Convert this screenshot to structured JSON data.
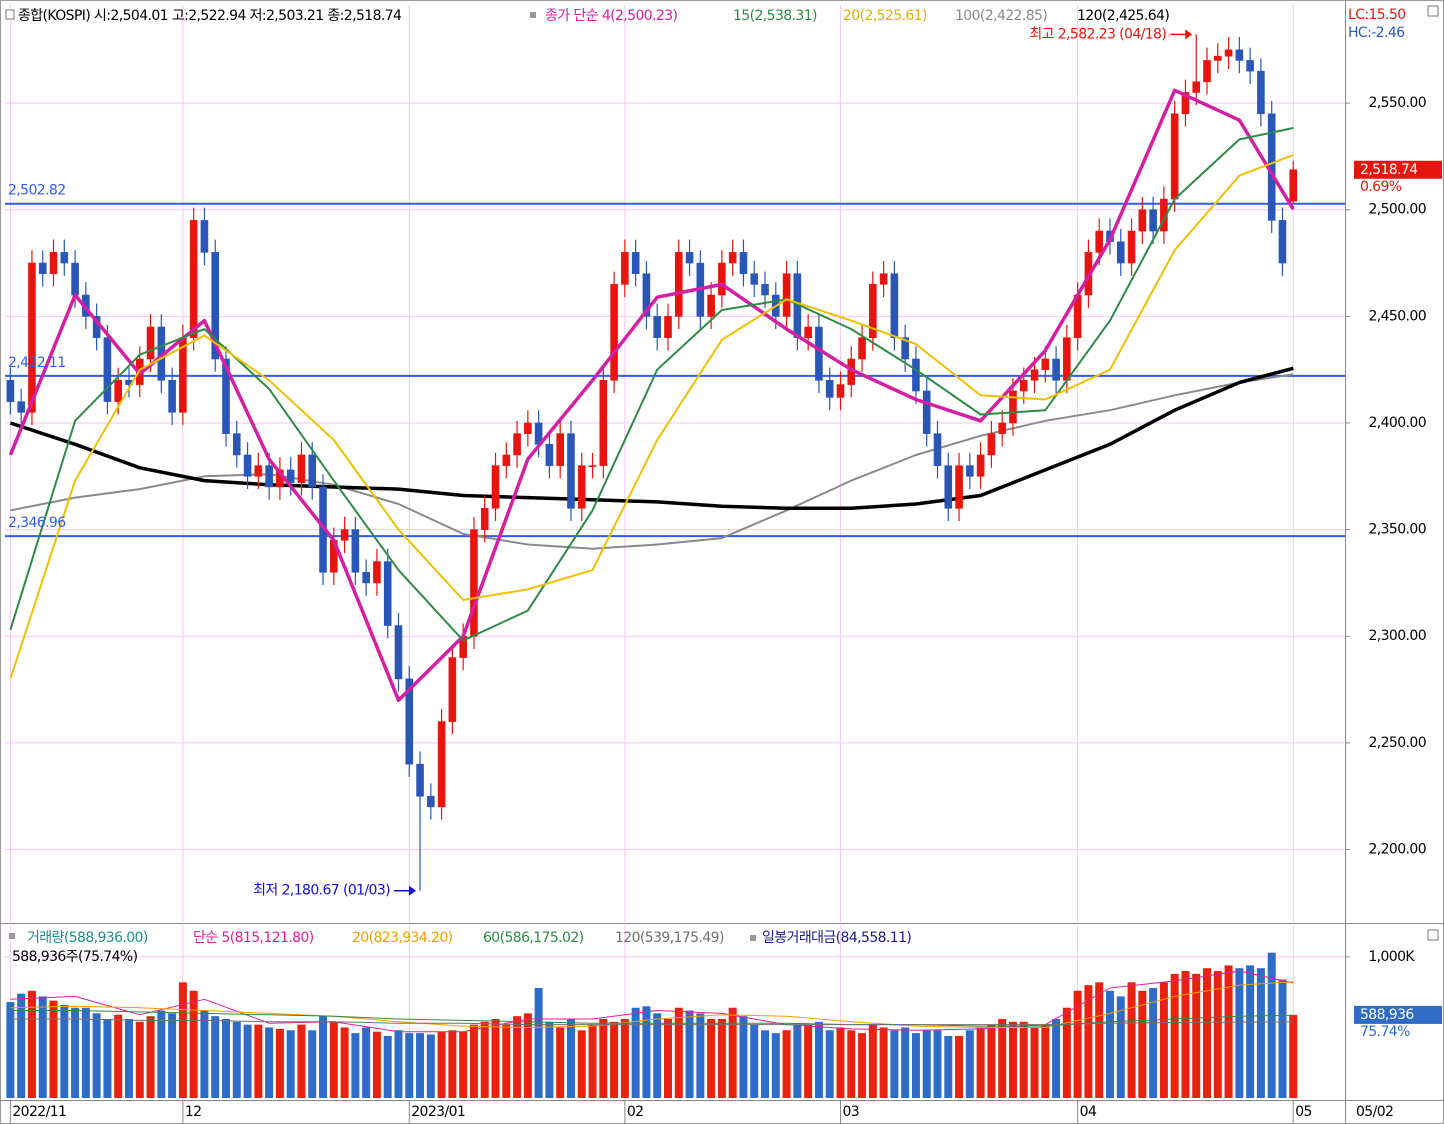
{
  "chart_data": [
    {
      "type": "candlestick",
      "title": "종합(KOSPI) 시:2,504.01 고:2,522.94 저:2,503.21 종:2,518.74",
      "open": [
        2420,
        2410,
        2405,
        2475,
        2470,
        2480,
        2475,
        2460,
        2450,
        2440,
        2410,
        2420,
        2418,
        2430,
        2445,
        2420,
        2405,
        2440,
        2495,
        2480,
        2430,
        2395,
        2385,
        2375,
        2380,
        2370,
        2378,
        2372,
        2385,
        2370,
        2330,
        2345,
        2350,
        2330,
        2325,
        2335,
        2305,
        2280,
        2240,
        2225,
        2220,
        2260,
        2290,
        2300,
        2350,
        2360,
        2380,
        2385,
        2395,
        2400,
        2390,
        2380,
        2395,
        2360,
        2380,
        2380,
        2420,
        2465,
        2480,
        2470,
        2450,
        2440,
        2450,
        2480,
        2475,
        2450,
        2460,
        2475,
        2480,
        2470,
        2465,
        2460,
        2450,
        2470,
        2440,
        2445,
        2420,
        2412,
        2418,
        2430,
        2440,
        2465,
        2470,
        2440,
        2430,
        2415,
        2395,
        2380,
        2360,
        2380,
        2375,
        2385,
        2395,
        2400,
        2415,
        2420,
        2425,
        2430,
        2420,
        2440,
        2460,
        2480,
        2490,
        2485,
        2475,
        2490,
        2500,
        2490,
        2505,
        2545,
        2555,
        2560,
        2570,
        2572,
        2575,
        2570,
        2565,
        2545,
        2495,
        2504.01
      ],
      "high": [
        2426,
        2416,
        2481,
        2481,
        2486,
        2486,
        2481,
        2466,
        2456,
        2446,
        2426,
        2426,
        2436,
        2451,
        2451,
        2426,
        2446,
        2501,
        2501,
        2486,
        2436,
        2401,
        2391,
        2386,
        2386,
        2384,
        2384,
        2391,
        2391,
        2376,
        2351,
        2356,
        2356,
        2336,
        2341,
        2341,
        2311,
        2286,
        2246,
        2231,
        2266,
        2296,
        2306,
        2356,
        2366,
        2386,
        2391,
        2401,
        2406,
        2406,
        2396,
        2401,
        2401,
        2386,
        2386,
        2426,
        2471,
        2486,
        2486,
        2476,
        2456,
        2456,
        2486,
        2486,
        2481,
        2466,
        2481,
        2486,
        2486,
        2476,
        2471,
        2466,
        2476,
        2476,
        2451,
        2451,
        2426,
        2424,
        2436,
        2446,
        2471,
        2476,
        2476,
        2446,
        2436,
        2421,
        2401,
        2386,
        2386,
        2386,
        2391,
        2401,
        2406,
        2421,
        2426,
        2431,
        2436,
        2436,
        2446,
        2466,
        2486,
        2496,
        2496,
        2491,
        2496,
        2506,
        2506,
        2511,
        2551,
        2561,
        2582.23,
        2576,
        2578,
        2581,
        2581,
        2576,
        2571,
        2551,
        2501,
        2522.94
      ],
      "low": [
        2404,
        2399,
        2399,
        2464,
        2464,
        2469,
        2454,
        2444,
        2434,
        2404,
        2404,
        2412,
        2412,
        2424,
        2414,
        2399,
        2399,
        2434,
        2474,
        2424,
        2389,
        2379,
        2369,
        2369,
        2364,
        2364,
        2366,
        2366,
        2364,
        2324,
        2324,
        2339,
        2324,
        2319,
        2319,
        2299,
        2274,
        2234,
        2180.67,
        2214,
        2214,
        2254,
        2284,
        2294,
        2344,
        2354,
        2374,
        2379,
        2389,
        2384,
        2374,
        2374,
        2354,
        2354,
        2374,
        2374,
        2414,
        2459,
        2464,
        2444,
        2434,
        2434,
        2444,
        2469,
        2444,
        2444,
        2454,
        2469,
        2464,
        2459,
        2454,
        2444,
        2444,
        2434,
        2434,
        2414,
        2406,
        2406,
        2412,
        2424,
        2434,
        2459,
        2434,
        2424,
        2409,
        2389,
        2374,
        2354,
        2354,
        2369,
        2369,
        2379,
        2389,
        2394,
        2409,
        2414,
        2419,
        2414,
        2414,
        2434,
        2454,
        2474,
        2479,
        2469,
        2469,
        2484,
        2484,
        2484,
        2499,
        2539,
        2549,
        2554,
        2564,
        2566,
        2564,
        2559,
        2539,
        2489,
        2469,
        2503.21
      ],
      "close": [
        2410,
        2405,
        2475,
        2470,
        2480,
        2475,
        2460,
        2450,
        2440,
        2410,
        2420,
        2418,
        2430,
        2445,
        2420,
        2405,
        2440,
        2495,
        2480,
        2430,
        2395,
        2385,
        2375,
        2380,
        2370,
        2378,
        2372,
        2385,
        2370,
        2330,
        2345,
        2350,
        2330,
        2325,
        2335,
        2305,
        2280,
        2240,
        2225,
        2220,
        2260,
        2290,
        2300,
        2350,
        2360,
        2380,
        2385,
        2395,
        2400,
        2390,
        2380,
        2395,
        2360,
        2380,
        2380,
        2420,
        2465,
        2480,
        2470,
        2450,
        2440,
        2450,
        2480,
        2475,
        2450,
        2460,
        2475,
        2480,
        2470,
        2465,
        2460,
        2450,
        2470,
        2440,
        2445,
        2420,
        2412,
        2418,
        2430,
        2440,
        2465,
        2470,
        2440,
        2430,
        2415,
        2395,
        2380,
        2360,
        2380,
        2375,
        2385,
        2395,
        2400,
        2415,
        2420,
        2425,
        2430,
        2420,
        2440,
        2460,
        2480,
        2490,
        2485,
        2475,
        2490,
        2500,
        2490,
        2505,
        2545,
        2555,
        2560,
        2570,
        2572,
        2575,
        2570,
        2565,
        2545,
        2495,
        2475,
        2518.74
      ],
      "up_color": "#e8150f",
      "down_color": "#2a56b8",
      "xlim": [
        -0.5,
        123.8
      ],
      "xticks": [
        {
          "value": 0,
          "label": "2022/11"
        },
        {
          "value": 16,
          "label": "12"
        },
        {
          "value": 37,
          "label": "2023/01"
        },
        {
          "value": 57,
          "label": "02"
        },
        {
          "value": 77,
          "label": "03"
        },
        {
          "value": 99,
          "label": "04"
        },
        {
          "value": 119,
          "label": "05"
        }
      ],
      "ylim": [
        2166,
        2596
      ],
      "yticks": [
        {
          "value": 2200,
          "label": "2,200.00"
        },
        {
          "value": 2250,
          "label": "2,250.00"
        },
        {
          "value": 2300,
          "label": "2,300.00"
        },
        {
          "value": 2350,
          "label": "2,350.00"
        },
        {
          "value": 2400,
          "label": "2,400.00"
        },
        {
          "value": 2450,
          "label": "2,450.00"
        },
        {
          "value": 2500,
          "label": "2,500.00"
        },
        {
          "value": 2550,
          "label": "2,550.00"
        }
      ],
      "grid": true,
      "series": [
        {
          "name": "종가 단순 4(2,500.23)",
          "color": "#d41ea4",
          "width": 3.5,
          "x": [
            0,
            6,
            12,
            18,
            24,
            30,
            36,
            42,
            48,
            54,
            60,
            66,
            72,
            78,
            84,
            90,
            96,
            102,
            108,
            114,
            119
          ],
          "values": [
            2385,
            2460,
            2423,
            2448,
            2383,
            2345,
            2270,
            2300,
            2383,
            2420,
            2459,
            2465,
            2444,
            2425,
            2411,
            2401,
            2434,
            2486,
            2556,
            2542,
            2500.23
          ]
        },
        {
          "name": "15(2,538.31)",
          "color": "#2e8b45",
          "width": 2,
          "x": [
            0,
            6,
            12,
            18,
            24,
            30,
            36,
            42,
            48,
            54,
            60,
            66,
            72,
            78,
            84,
            90,
            96,
            102,
            108,
            114,
            119
          ],
          "values": [
            2303,
            2401,
            2432,
            2444,
            2416,
            2373,
            2331,
            2298,
            2312,
            2359,
            2425,
            2453,
            2458,
            2444,
            2425,
            2404,
            2406,
            2448,
            2505,
            2533,
            2538.31
          ]
        },
        {
          "name": "20(2,525.61)",
          "color": "#f0c000",
          "width": 2,
          "x": [
            0,
            6,
            12,
            18,
            24,
            30,
            36,
            42,
            48,
            54,
            60,
            66,
            72,
            78,
            84,
            90,
            96,
            102,
            108,
            114,
            119
          ],
          "values": [
            2280,
            2373,
            2425,
            2441,
            2420,
            2392,
            2350,
            2317,
            2322,
            2331,
            2392,
            2439,
            2458,
            2448,
            2437,
            2413,
            2411,
            2425,
            2481,
            2516,
            2525.61
          ]
        },
        {
          "name": "100(2,422.85)",
          "color": "#8a8a8a",
          "width": 2,
          "x": [
            0,
            6,
            12,
            18,
            24,
            30,
            36,
            42,
            48,
            54,
            60,
            66,
            72,
            78,
            84,
            90,
            96,
            102,
            108,
            114,
            119
          ],
          "values": [
            2359,
            2365,
            2369,
            2375,
            2376,
            2371,
            2362,
            2348,
            2343,
            2341,
            2343,
            2346,
            2359,
            2373,
            2385,
            2394,
            2401,
            2406,
            2413,
            2419,
            2422.85
          ]
        },
        {
          "name": "120(2,425.64)",
          "color": "#000000",
          "width": 3.5,
          "x": [
            0,
            6,
            12,
            18,
            24,
            30,
            36,
            42,
            48,
            54,
            60,
            66,
            72,
            78,
            84,
            90,
            96,
            102,
            108,
            114,
            119
          ],
          "values": [
            2400,
            2390,
            2379,
            2373,
            2371,
            2370,
            2369,
            2366,
            2365,
            2364,
            2363,
            2361,
            2360,
            2360,
            2362,
            2366,
            2378,
            2390,
            2406,
            2419,
            2425.64
          ]
        }
      ],
      "hlines": [
        {
          "value": 2502.82,
          "label": "2,502.82"
        },
        {
          "value": 2422.11,
          "label": "2,422.11"
        },
        {
          "value": 2346.96,
          "label": "2,346.96"
        }
      ],
      "hline_color": "#2f5cf0",
      "annotations": [
        {
          "label": "최고 2,582.23 (04/18)",
          "x": 110,
          "value": 2582.23,
          "color": "#e8150f"
        },
        {
          "label": "최저 2,180.67 (01/03)",
          "x": 38,
          "value": 2180.67,
          "color": "#1010d0"
        }
      ],
      "last_price": {
        "value": 2518.74,
        "label": "2,518.74"
      },
      "change_label": "0.69%",
      "lc_label": "LC:15.50",
      "hc_label": "HC:-2.46"
    },
    {
      "type": "bar",
      "title": "588,936주(75.74%)",
      "name": "거래량(588,936.00)",
      "name_color": "#1e8c8c",
      "values": [
        680,
        740,
        760,
        720,
        690,
        660,
        640,
        640,
        600,
        560,
        590,
        560,
        540,
        580,
        620,
        600,
        820,
        760,
        620,
        580,
        560,
        540,
        520,
        520,
        500,
        490,
        480,
        520,
        480,
        580,
        540,
        500,
        460,
        500,
        470,
        440,
        480,
        460,
        460,
        450,
        470,
        480,
        470,
        520,
        540,
        560,
        520,
        580,
        600,
        780,
        540,
        500,
        560,
        480,
        520,
        560,
        540,
        560,
        640,
        650,
        600,
        560,
        640,
        620,
        600,
        560,
        560,
        640,
        580,
        520,
        480,
        460,
        480,
        520,
        520,
        540,
        480,
        500,
        480,
        460,
        520,
        500,
        480,
        500,
        460,
        480,
        480,
        440,
        440,
        480,
        500,
        520,
        560,
        540,
        540,
        500,
        520,
        560,
        640,
        760,
        800,
        820,
        760,
        720,
        820,
        760,
        780,
        820,
        880,
        900,
        880,
        920,
        900,
        940,
        920,
        940,
        920,
        1030,
        840,
        588.936
      ],
      "up_color": "#e8220e",
      "down_color": "#2e6cc8",
      "ylim": [
        0,
        1120
      ],
      "yticks": [
        {
          "value": 1000,
          "label": "1,000K"
        }
      ],
      "series": [
        {
          "name": "단순 5(815,121.80)",
          "color": "#e0209a",
          "x": [
            0,
            6,
            12,
            18,
            24,
            30,
            36,
            42,
            48,
            54,
            60,
            66,
            72,
            78,
            84,
            90,
            96,
            102,
            108,
            114,
            119
          ],
          "values": [
            700,
            720,
            590,
            700,
            530,
            540,
            470,
            470,
            560,
            560,
            620,
            600,
            520,
            490,
            480,
            490,
            520,
            780,
            830,
            900,
            815.12
          ]
        },
        {
          "name": "20(823,934.20)",
          "color": "#f0a000",
          "x": [
            0,
            6,
            12,
            18,
            24,
            30,
            36,
            42,
            48,
            54,
            60,
            66,
            72,
            78,
            84,
            90,
            96,
            102,
            108,
            114,
            119
          ],
          "values": [
            640,
            650,
            640,
            620,
            600,
            580,
            540,
            510,
            500,
            510,
            560,
            590,
            580,
            540,
            510,
            500,
            500,
            600,
            720,
            800,
            823.93
          ]
        },
        {
          "name": "60(586,175.02)",
          "color": "#2e8b45",
          "x": [
            0,
            6,
            12,
            18,
            24,
            30,
            36,
            42,
            48,
            54,
            60,
            66,
            72,
            78,
            84,
            90,
            96,
            102,
            108,
            114,
            119
          ],
          "values": [
            620,
            620,
            610,
            600,
            590,
            580,
            560,
            550,
            540,
            530,
            530,
            530,
            530,
            520,
            520,
            510,
            510,
            540,
            560,
            580,
            586.18
          ]
        },
        {
          "name": "120(539,175.49)",
          "color": "#707070",
          "x": [
            0,
            6,
            12,
            18,
            24,
            30,
            36,
            42,
            48,
            54,
            60,
            66,
            72,
            78,
            84,
            90,
            96,
            102,
            108,
            114,
            119
          ],
          "values": [
            560,
            560,
            550,
            550,
            540,
            540,
            530,
            530,
            520,
            520,
            520,
            520,
            520,
            520,
            520,
            520,
            520,
            530,
            535,
            539,
            539.18
          ]
        }
      ],
      "extra_legend": {
        "label": "일봉거래대금(84,558.11)",
        "color": "#1a1a8a"
      },
      "last_value": {
        "value": 588.936,
        "label": "588,936"
      },
      "ratio_label": "75.74%",
      "date_label": "05/02"
    }
  ]
}
